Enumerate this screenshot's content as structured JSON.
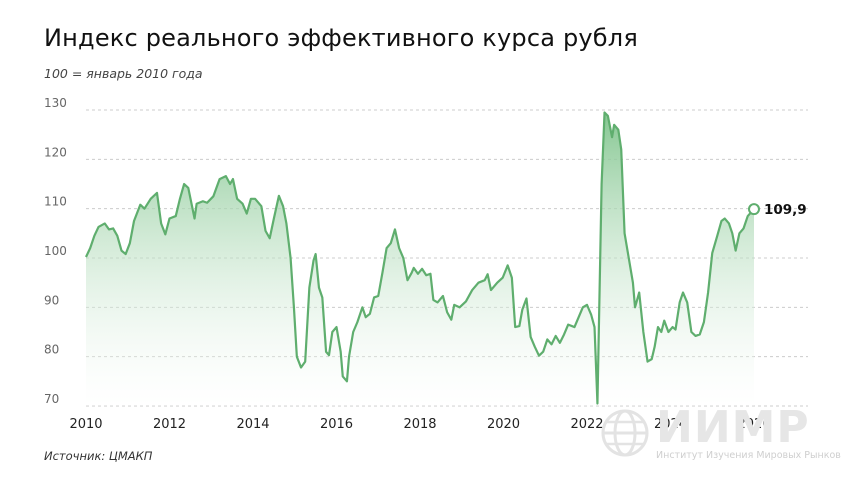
{
  "header": {
    "title": "Индекс реального эффективного курса рубля",
    "subtitle": "100 = январь 2010 года"
  },
  "footer": {
    "source": "Источник: ЦМАКП"
  },
  "logo": {
    "name": "ИИМР",
    "tagline": "Институт Изучения Мировых Рынков"
  },
  "colors": {
    "line": "#5fae6e",
    "area_top": "#7fc48c",
    "grid": "#cccccc",
    "logo": "#e6e6e6"
  },
  "chart_data": {
    "type": "area",
    "title": "Индекс реального эффективного курса рубля",
    "subtitle": "100 = январь 2010 года",
    "xlabel": "",
    "ylabel": "",
    "x_ticks": [
      "2010",
      "2012",
      "2014",
      "2016",
      "2018",
      "2020",
      "2022",
      "2024",
      "2026"
    ],
    "y_ticks": [
      70,
      80,
      90,
      100,
      110,
      120,
      130
    ],
    "xlim": [
      2010.0,
      2026.2
    ],
    "ylim": [
      70,
      130
    ],
    "grid": true,
    "last_label": "109,9",
    "series": [
      {
        "points": [
          [
            2010.0,
            100.2
          ],
          [
            2010.1,
            102.0
          ],
          [
            2010.2,
            104.5
          ],
          [
            2010.3,
            106.3
          ],
          [
            2010.45,
            107.0
          ],
          [
            2010.55,
            105.8
          ],
          [
            2010.65,
            106.0
          ],
          [
            2010.75,
            104.5
          ],
          [
            2010.85,
            101.5
          ],
          [
            2010.95,
            100.8
          ],
          [
            2011.05,
            103.0
          ],
          [
            2011.15,
            107.5
          ],
          [
            2011.3,
            110.8
          ],
          [
            2011.4,
            110.0
          ],
          [
            2011.55,
            112.0
          ],
          [
            2011.7,
            113.2
          ],
          [
            2011.8,
            107.0
          ],
          [
            2011.9,
            104.8
          ],
          [
            2012.0,
            108.0
          ],
          [
            2012.15,
            108.5
          ],
          [
            2012.25,
            112.0
          ],
          [
            2012.35,
            115.0
          ],
          [
            2012.45,
            114.2
          ],
          [
            2012.6,
            108.0
          ],
          [
            2012.65,
            111.0
          ],
          [
            2012.8,
            111.5
          ],
          [
            2012.9,
            111.2
          ],
          [
            2013.05,
            112.5
          ],
          [
            2013.2,
            116.0
          ],
          [
            2013.35,
            116.6
          ],
          [
            2013.45,
            115.0
          ],
          [
            2013.52,
            116.0
          ],
          [
            2013.62,
            112.0
          ],
          [
            2013.75,
            111.0
          ],
          [
            2013.85,
            109.0
          ],
          [
            2013.95,
            112.0
          ],
          [
            2014.05,
            112.0
          ],
          [
            2014.2,
            110.5
          ],
          [
            2014.3,
            105.5
          ],
          [
            2014.4,
            104.0
          ],
          [
            2014.5,
            108.0
          ],
          [
            2014.62,
            112.6
          ],
          [
            2014.72,
            110.5
          ],
          [
            2014.8,
            107.0
          ],
          [
            2014.9,
            100.0
          ],
          [
            2014.98,
            90.0
          ],
          [
            2015.05,
            80.0
          ],
          [
            2015.15,
            77.8
          ],
          [
            2015.25,
            79.0
          ],
          [
            2015.35,
            94.0
          ],
          [
            2015.45,
            99.5
          ],
          [
            2015.5,
            100.8
          ],
          [
            2015.58,
            94.0
          ],
          [
            2015.66,
            92.0
          ],
          [
            2015.75,
            81.0
          ],
          [
            2015.82,
            80.3
          ],
          [
            2015.9,
            85.0
          ],
          [
            2016.0,
            86.0
          ],
          [
            2016.1,
            81.0
          ],
          [
            2016.15,
            76.0
          ],
          [
            2016.25,
            75.0
          ],
          [
            2016.3,
            80.0
          ],
          [
            2016.4,
            85.0
          ],
          [
            2016.5,
            87.0
          ],
          [
            2016.62,
            90.0
          ],
          [
            2016.7,
            88.0
          ],
          [
            2016.8,
            88.7
          ],
          [
            2016.9,
            92.0
          ],
          [
            2017.0,
            92.3
          ],
          [
            2017.1,
            97.0
          ],
          [
            2017.2,
            102.0
          ],
          [
            2017.3,
            103.0
          ],
          [
            2017.4,
            105.8
          ],
          [
            2017.5,
            102.0
          ],
          [
            2017.6,
            100.0
          ],
          [
            2017.7,
            95.5
          ],
          [
            2017.8,
            97.0
          ],
          [
            2017.85,
            98.0
          ],
          [
            2017.95,
            96.8
          ],
          [
            2018.05,
            97.8
          ],
          [
            2018.15,
            96.5
          ],
          [
            2018.25,
            96.8
          ],
          [
            2018.32,
            91.5
          ],
          [
            2018.42,
            91.0
          ],
          [
            2018.55,
            92.3
          ],
          [
            2018.65,
            89.0
          ],
          [
            2018.75,
            87.5
          ],
          [
            2018.82,
            90.5
          ],
          [
            2018.95,
            90.0
          ],
          [
            2019.1,
            91.2
          ],
          [
            2019.25,
            93.5
          ],
          [
            2019.4,
            95.0
          ],
          [
            2019.55,
            95.5
          ],
          [
            2019.62,
            96.7
          ],
          [
            2019.7,
            93.5
          ],
          [
            2019.85,
            95.0
          ],
          [
            2019.98,
            96.0
          ],
          [
            2020.1,
            98.5
          ],
          [
            2020.2,
            96.0
          ],
          [
            2020.28,
            86.0
          ],
          [
            2020.38,
            86.2
          ],
          [
            2020.45,
            89.5
          ],
          [
            2020.55,
            91.8
          ],
          [
            2020.65,
            84.0
          ],
          [
            2020.75,
            82.0
          ],
          [
            2020.85,
            80.2
          ],
          [
            2020.95,
            81.0
          ],
          [
            2021.05,
            83.5
          ],
          [
            2021.15,
            82.5
          ],
          [
            2021.25,
            84.2
          ],
          [
            2021.35,
            82.8
          ],
          [
            2021.45,
            84.5
          ],
          [
            2021.55,
            86.5
          ],
          [
            2021.7,
            86.0
          ],
          [
            2021.8,
            88.0
          ],
          [
            2021.9,
            90.0
          ],
          [
            2022.0,
            90.5
          ],
          [
            2022.1,
            88.5
          ],
          [
            2022.18,
            86.0
          ],
          [
            2022.25,
            70.5
          ],
          [
            2022.35,
            115.0
          ],
          [
            2022.42,
            129.5
          ],
          [
            2022.5,
            128.8
          ],
          [
            2022.6,
            124.5
          ],
          [
            2022.65,
            127.0
          ],
          [
            2022.75,
            126.0
          ],
          [
            2022.82,
            122.0
          ],
          [
            2022.9,
            105.0
          ],
          [
            2023.0,
            100.0
          ],
          [
            2023.1,
            95.0
          ],
          [
            2023.15,
            90.0
          ],
          [
            2023.25,
            93.0
          ],
          [
            2023.35,
            85.0
          ],
          [
            2023.45,
            79.0
          ],
          [
            2023.55,
            79.5
          ],
          [
            2023.62,
            82.0
          ],
          [
            2023.7,
            86.0
          ],
          [
            2023.78,
            85.0
          ],
          [
            2023.85,
            87.3
          ],
          [
            2023.95,
            85.0
          ],
          [
            2024.05,
            86.0
          ],
          [
            2024.12,
            85.5
          ],
          [
            2024.22,
            91.0
          ],
          [
            2024.3,
            93.0
          ],
          [
            2024.4,
            91.0
          ],
          [
            2024.5,
            85.0
          ],
          [
            2024.6,
            84.2
          ],
          [
            2024.7,
            84.5
          ],
          [
            2024.8,
            87.0
          ],
          [
            2024.9,
            93.0
          ],
          [
            2025.0,
            101.0
          ],
          [
            2025.12,
            104.5
          ],
          [
            2025.22,
            107.5
          ],
          [
            2025.3,
            108.0
          ],
          [
            2025.4,
            107.0
          ],
          [
            2025.48,
            105.0
          ],
          [
            2025.56,
            101.5
          ],
          [
            2025.65,
            105.0
          ],
          [
            2025.75,
            106.0
          ],
          [
            2025.85,
            108.5
          ],
          [
            2026.0,
            109.9
          ]
        ]
      }
    ]
  }
}
